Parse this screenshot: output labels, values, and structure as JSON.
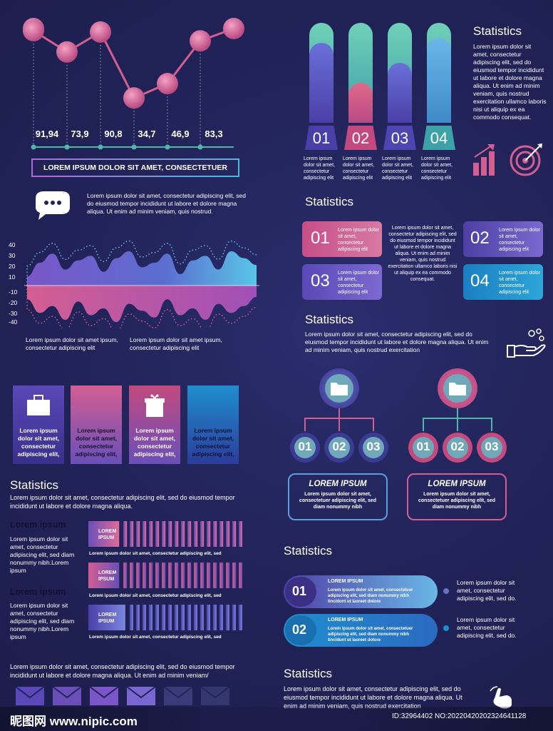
{
  "colors": {
    "pink": "#d35e92",
    "violet": "#6b56c8",
    "teal": "#4eb9a8",
    "blue": "#1f8ecf",
    "bg": "#22245a"
  },
  "line_values_text": [
    "91,94",
    "73,9",
    "90,8",
    "34,7",
    "46,9",
    "83,3"
  ],
  "banner": "LOREM IPSUM DOLOR SIT AMET, CONSECTETUER",
  "chat_text": "Lorem ipsum dolor sit amet, consectetur adipiscing elit, sed do eiusmod tempor incididunt ut labore et dolore magna aliqua. Ut enim ad minim veniam, quis nostrud.",
  "wave_caption_1": "Lorem ipsum dolor sit amet ipsum, consectetur adipiscing elit",
  "wave_caption_2": "Lorem ipsum dolor sit amet ipsum, consectetur adipiscing elit",
  "cyl_numbers": [
    "01",
    "02",
    "03",
    "04"
  ],
  "cyl_caption": "Lorem ipsum dolor sit amet, consectetur adipiscing elit",
  "stat1": {
    "title": "Statistics",
    "text": "Lorem ipsum dolor sit amet, consectetur adipiscing elit, sed do eiusmod tempor incididunt ut labore et dolore magna aliqua. Ut enim ad minim veniam, quis nostrud exercitation ullamco laboris nisi ut aliquip ex ea commodo consequat."
  },
  "stat2": {
    "title": "Statistics",
    "box_numbers": [
      "01",
      "03",
      "02",
      "04"
    ],
    "box_text": "Lorem ipsum dolor sit amet, consectetur adipiscing elit",
    "center_text": "Lorem ipsum dolor sit amet, consectetur adipiscing elit, sed do eiusmod tempor incididunt ut labore et dolore magna aliqua. Ut enim ad minim veniam, quis nostrud exercitation ullamco laboris nisi ut aliquip ex ea commodo consequat."
  },
  "stat3": {
    "title": "Statistics",
    "text": "Lorem ipsum dolor sit amet, consectetur adipiscing elit, sed do eiusmod tempor incididunt ut labore et dolore magna aliqua. Ut enim ad minim veniam, quis nostrud exercitation"
  },
  "tree": {
    "nodes": [
      "01",
      "02",
      "03"
    ],
    "card_title": "LOREM IPSUM",
    "card_text": "Lorem ipsum dolor sit amet, consectetuer adipiscing elit, sed diam nonummy nibh"
  },
  "cards": {
    "text": "Lorem ipsum dolor sit amet, consectetur adipiscing elit,"
  },
  "stat4": {
    "title": "Statistics",
    "text": "Lorem ipsum dolor sit amet, consectetur adipiscing elit, sed do eiusmod tempor incididunt ut labore et dolore magna aliqua."
  },
  "side": {
    "title": "Lorem ipsum",
    "text": "Lorem ipsum dolor sit amet, consectetur adipiscing elit, sed diam nonummy nibh.Lorem ipsum"
  },
  "bars": {
    "label": "LOREM IPSUM",
    "caption": "Lorem ipsum dolor sit amet, consectetur adipiscing elit, sed"
  },
  "bottom_text": "Lorem ipsum dolor sit amet, consectetur adipiscing elit, sed do eiusmod tempor incididunt ut labore et dolore magna aliqua. Ut enim ad minim veniam/",
  "stat5": {
    "title": "Statistics",
    "tag_numbers": [
      "01",
      "02"
    ],
    "tag_title": "LOREM IPSUM",
    "tag_text": "Lorem ipsum dolor sit amet, consectetuer adipiscing elit, sed diam nonummy nibh tincidunt ut laoreet dolore",
    "side_text": "Lorem ipsum dolor sit amet, consectetur adipiscing elit, sed do."
  },
  "stat6": {
    "title": "Statistics",
    "text": "Lorem ipsum dolor sit amet, consectetur adipiscing elit, sed do eiusmod tempor incididunt ut labore et dolore magna aliqua. Ut enim ad minim veniam, quis nostrud exercitation"
  },
  "watermark_site": "昵图网 www.nipic.com",
  "watermark_id": "ID:32964402 NO:20220420202324641128",
  "chart_data": [
    {
      "type": "line",
      "x": [
        1,
        2,
        3,
        4,
        5,
        6
      ],
      "values": [
        91.94,
        73.9,
        90.8,
        34.7,
        46.9,
        83.3
      ],
      "data_labels": [
        "91,94",
        "73,9",
        "90,8",
        "34,7",
        "46,9",
        "83,3"
      ]
    },
    {
      "type": "area",
      "yticks": [
        "40",
        "30",
        "20",
        "10",
        "-10",
        "-20",
        "-30",
        "-40"
      ],
      "ylim": [
        -40,
        40
      ],
      "series": [
        {
          "values": [
            8,
            20,
            28,
            14,
            22,
            26,
            12,
            24,
            30,
            16,
            20,
            28,
            10,
            22,
            26,
            14,
            30,
            24,
            18
          ]
        },
        {
          "values": [
            -12,
            -24,
            -18,
            -30,
            -14,
            -26,
            -20,
            -32,
            -16,
            -22,
            -28,
            -12,
            -26,
            -20,
            -30,
            -16,
            -24,
            -18,
            -10
          ]
        }
      ]
    },
    {
      "type": "bar",
      "categories": [
        "01",
        "02",
        "03",
        "04"
      ],
      "values": [
        80,
        40,
        60,
        85
      ],
      "ylim": [
        0,
        100
      ]
    },
    {
      "type": "bar",
      "values": [
        0.2,
        0.2,
        0.24
      ]
    }
  ]
}
